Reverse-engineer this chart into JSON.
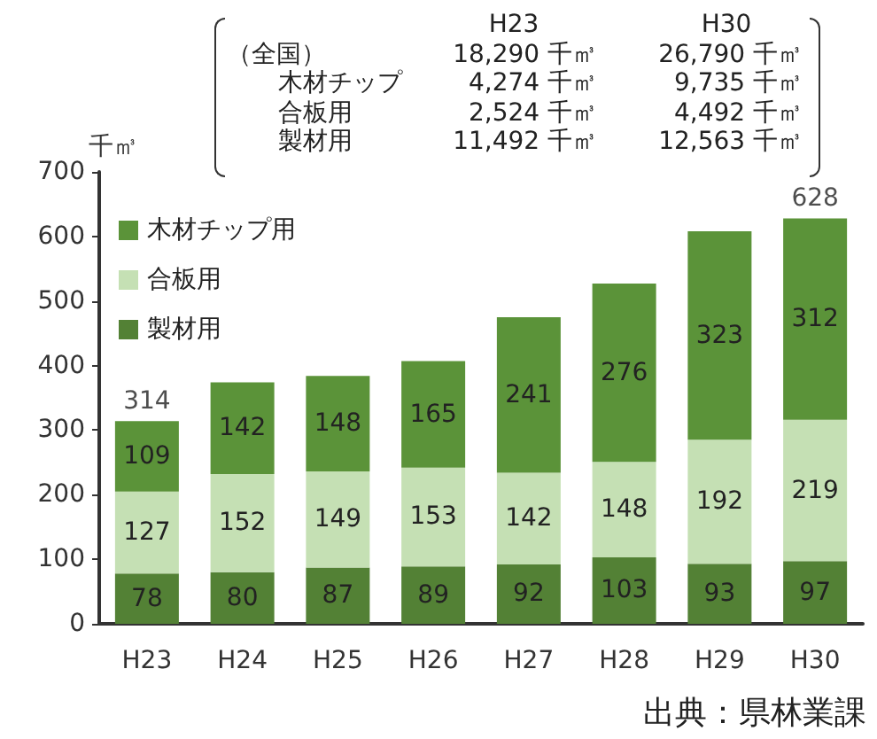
{
  "chart_data": {
    "type": "bar",
    "stacked": true,
    "ylabel": "千㎥",
    "categories": [
      "H23",
      "H24",
      "H25",
      "H26",
      "H27",
      "H28",
      "H29",
      "H30"
    ],
    "series": [
      {
        "name": "製材用",
        "color": "#538135",
        "values": [
          78,
          80,
          87,
          89,
          92,
          103,
          93,
          97
        ]
      },
      {
        "name": "合板用",
        "color": "#c5e0b4",
        "values": [
          127,
          152,
          149,
          153,
          142,
          148,
          192,
          219
        ]
      },
      {
        "name": "木材チップ用",
        "color": "#5b9339",
        "values": [
          109,
          142,
          148,
          165,
          241,
          276,
          323,
          312
        ]
      }
    ],
    "totals": [
      "314",
      null,
      null,
      null,
      null,
      null,
      null,
      "628"
    ],
    "data_labels": true,
    "ylim": [
      0,
      700
    ],
    "yticks": [
      0,
      100,
      200,
      300,
      400,
      500,
      600,
      700
    ],
    "grid": false,
    "legend": "top left",
    "annotations": [
      "H23",
      "H30",
      "（全国）",
      "18,290 千㎥",
      "26,790 千㎥",
      "木材チップ",
      "4,274 千㎥",
      "9,735 千㎥",
      "合板用",
      "2,524 千㎥",
      "4,492 千㎥",
      "製材用",
      "11,492 千㎥",
      "12,563 千㎥",
      "出典：県林業課"
    ]
  }
}
